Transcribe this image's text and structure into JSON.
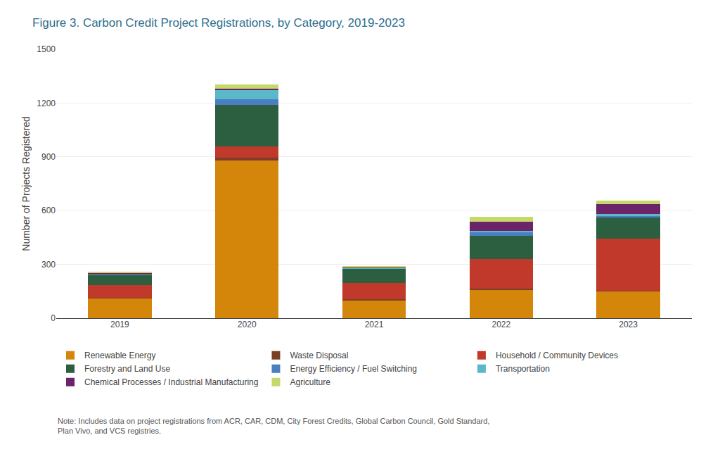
{
  "chart_data": {
    "type": "bar",
    "stacked": true,
    "title": "Figure 3. Carbon Credit Project Registrations, by Category, 2019-2023",
    "y_label": "Number of Projects Registered",
    "annotations": [
      "Note: Includes data on project registrations from ACR, CAR, CDM, City Forest Credits, Global Carbon Council, Gold Standard,\nPlan Vivo, and VCS registries."
    ],
    "categories": [
      "2019",
      "2020",
      "2021",
      "2022",
      "2023"
    ],
    "series": [
      {
        "name": "Renewable Energy",
        "color": "#D4860A",
        "values": [
          110,
          880,
          100,
          160,
          150
        ]
      },
      {
        "name": "Waste Disposal",
        "color": "#7B3F28",
        "values": [
          5,
          15,
          5,
          5,
          5
        ]
      },
      {
        "name": "Household / Community Devices",
        "color": "#C0392B",
        "values": [
          70,
          65,
          90,
          165,
          290
        ]
      },
      {
        "name": "Forestry and Land Use",
        "color": "#2C5F3F",
        "values": [
          55,
          230,
          80,
          130,
          120
        ]
      },
      {
        "name": "Energy Efficiency / Fuel Switching",
        "color": "#4A7FC1",
        "values": [
          3,
          30,
          3,
          20,
          5
        ]
      },
      {
        "name": "Transportation",
        "color": "#5BB8C9",
        "values": [
          2,
          55,
          2,
          8,
          10
        ]
      },
      {
        "name": "Chemical Processes / Industrial Manufacturing",
        "color": "#6B2469",
        "values": [
          8,
          5,
          5,
          50,
          55
        ]
      },
      {
        "name": "Agriculture",
        "color": "#C5D96B",
        "values": [
          5,
          25,
          5,
          28,
          22
        ]
      }
    ],
    "ylim": [
      0,
      1500
    ],
    "yticks": [
      0,
      300,
      600,
      900,
      1200,
      1500
    ],
    "grid": true,
    "legend": "bottom"
  }
}
